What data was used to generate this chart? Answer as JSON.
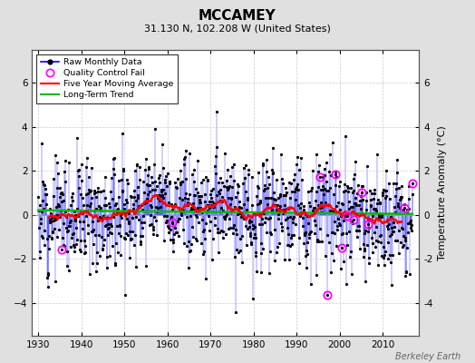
{
  "title": "MCCAMEY",
  "subtitle": "31.130 N, 102.208 W (United States)",
  "ylabel": "Temperature Anomaly (°C)",
  "watermark": "Berkeley Earth",
  "xlim": [
    1928.5,
    2018.5
  ],
  "ylim": [
    -5.5,
    7.5
  ],
  "yticks": [
    -4,
    -2,
    0,
    2,
    4,
    6
  ],
  "xticks": [
    1930,
    1940,
    1950,
    1960,
    1970,
    1980,
    1990,
    2000,
    2010
  ],
  "figure_bg": "#e0e0e0",
  "plot_bg": "#ffffff",
  "line_color": "#0000ff",
  "moving_avg_color": "#ff0000",
  "trend_color": "#00bb00",
  "qc_fail_color": "#ff00ff",
  "dot_color": "#000000",
  "grid_color": "#cccccc",
  "seed": 12,
  "n_months": 1044,
  "start_year": 1930.0,
  "noise_scale": 1.6
}
